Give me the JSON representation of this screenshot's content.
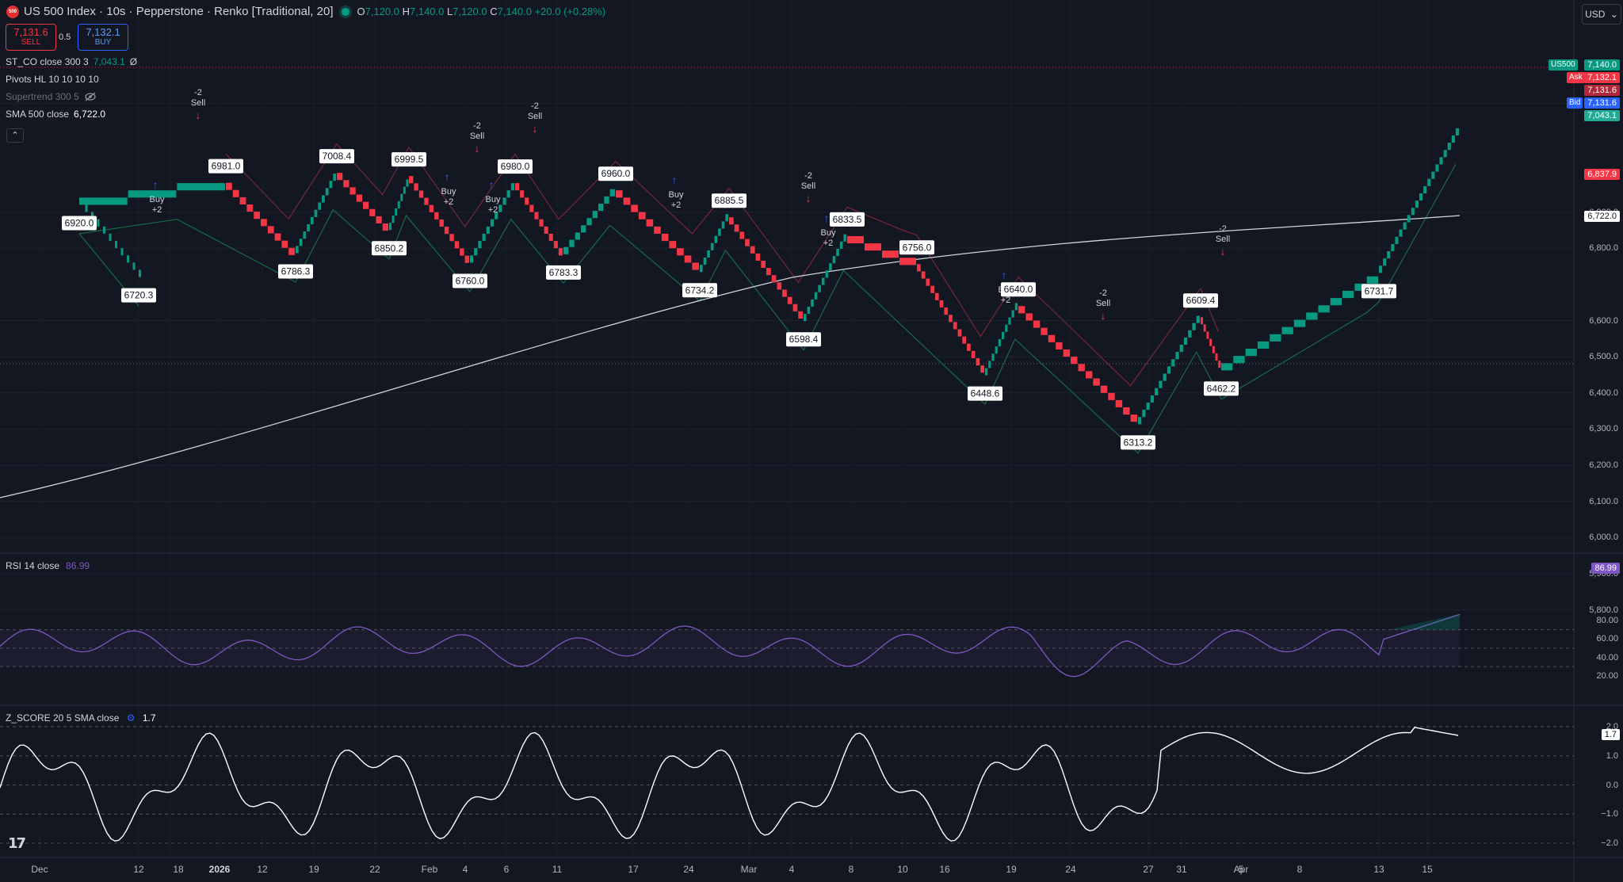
{
  "header": {
    "symbol_logo": "500",
    "title": "US 500 Index · 10s · Pepperstone · Renko [Traditional, 20]",
    "ohlc": [
      {
        "k": "O",
        "v": "7,120.0"
      },
      {
        "k": "H",
        "v": "7,140.0"
      },
      {
        "k": "L",
        "v": "7,120.0"
      },
      {
        "k": "C",
        "v": "7,140.0"
      },
      {
        "k": "",
        "v": "+20.0 (+0.28%)"
      }
    ],
    "sell_price": "7,131.6",
    "sell_label": "SELL",
    "spread": "0.5",
    "buy_price": "7,132.1",
    "buy_label": "BUY"
  },
  "legends": [
    {
      "name": "ST_CO close 300 3",
      "value": "7,043.1",
      "extra": "Ø"
    },
    {
      "name": "Pivots HL 10 10 10 10",
      "value": "",
      "extra": ""
    },
    {
      "name": "Supertrend 300 5",
      "value": "",
      "extra": "hidden-eye-icon"
    },
    {
      "name": "SMA 500 close",
      "value": "6,722.0",
      "extra": ""
    }
  ],
  "currency": "USD",
  "price_axis": {
    "labels": [
      "7,200.0",
      "6,900.0",
      "6,800.0",
      "6,600.0",
      "6,500.0",
      "6,400.0",
      "6,300.0",
      "6,200.0",
      "6,100.0",
      "6,000.0",
      "5,900.0",
      "5,800.0"
    ],
    "badges": {
      "symbol": "US500",
      "last": "7,140.0",
      "ask_label": "Ask",
      "ask": "7,132.1",
      "mid": "7,131.6",
      "bid_label": "Bid",
      "bid": "7,131.6",
      "st": "7,043.1",
      "pivot": "6,837.9",
      "sma": "6,722.0"
    }
  },
  "rsi": {
    "title": "RSI 14 close",
    "value": "86.99",
    "axis": [
      "80.00",
      "60.00",
      "40.00",
      "20.00"
    ]
  },
  "zscore": {
    "title": "Z_SCORE 20 5 SMA close",
    "value": "1.7",
    "axis": [
      "2.0",
      "1.0",
      "0.0",
      "−1.0",
      "−2.0"
    ]
  },
  "time_axis": [
    "Dec",
    "12",
    "18",
    "2026",
    "12",
    "19",
    "22",
    "Feb",
    "4",
    "6",
    "11",
    "17",
    "24",
    "Mar",
    "4",
    "8",
    "10",
    "16",
    "19",
    "24",
    "27",
    "31",
    "Apr",
    "5",
    "8",
    "13",
    "15"
  ],
  "chart_data": {
    "type": "line",
    "series": [
      {
        "values": [
          6720.3,
          6920.0,
          6981.0,
          6786.3,
          7008.4,
          6850.2,
          6999.5,
          6760.0,
          6980.0,
          6783.3,
          6960.0,
          6734.2,
          6885.5,
          6598.4,
          6833.5,
          6756.0,
          6448.6,
          6640.0,
          6313.2,
          6609.4,
          6462.2,
          6731.7,
          7140.0
        ]
      }
    ],
    "pivot_labels": [
      "6720.3",
      "6920.0",
      "6981.0",
      "6786.3",
      "7008.4",
      "6850.2",
      "6999.5",
      "6760.0",
      "6980.0",
      "6783.3",
      "6960.0",
      "6734.2",
      "6885.5",
      "6598.4",
      "6833.5",
      "6756.0",
      "6448.6",
      "6640.0",
      "6313.2",
      "6609.4",
      "6462.2",
      "6731.7"
    ],
    "signal_labels": {
      "buy": "Buy",
      "sell": "Sell",
      "plus": "+2",
      "minus": "-2"
    },
    "rsi_last": 86.99,
    "zscore_last": 1.7,
    "grid": true
  }
}
